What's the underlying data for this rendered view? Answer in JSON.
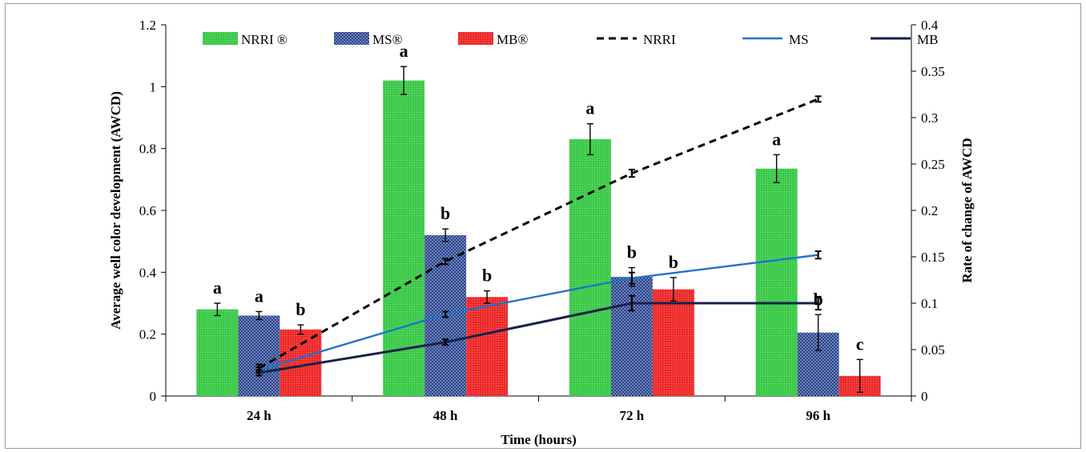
{
  "chart_data": {
    "type": "bar",
    "categories": [
      "24 h",
      "48 h",
      "72 h",
      "96 h"
    ],
    "xlabel": "Time (hours)",
    "ylabel": "Average well color development (AWCD)",
    "y2label": "Rate of change of AWCD",
    "ylim": [
      0,
      1.2
    ],
    "y2lim": [
      0,
      0.4
    ],
    "yticks": [
      "0",
      "0.2",
      "0.4",
      "0.6",
      "0.8",
      "1",
      "1.2"
    ],
    "y2ticks": [
      "0",
      "0.05",
      "0.1",
      "0.15",
      "0.2",
      "0.25",
      "0.3",
      "0.35",
      "0.4"
    ],
    "legend_position": "top",
    "series": [
      {
        "name": "NRRI ®",
        "kind": "bar",
        "axis": "left",
        "color": "#3cc94a",
        "values": [
          0.28,
          1.02,
          0.83,
          0.735
        ],
        "errors": [
          0.02,
          0.045,
          0.05,
          0.045
        ],
        "letters": [
          "a",
          "a",
          "a",
          "a"
        ]
      },
      {
        "name": "MS®",
        "kind": "bar",
        "axis": "left",
        "color": "#2f4a8f",
        "values": [
          0.26,
          0.52,
          0.385,
          0.205
        ],
        "errors": [
          0.013,
          0.02,
          0.03,
          0.058
        ],
        "letters": [
          "a",
          "b",
          "b",
          "b"
        ]
      },
      {
        "name": "MB®",
        "kind": "bar",
        "axis": "left",
        "color": "#ee2a2a",
        "values": [
          0.215,
          0.32,
          0.345,
          0.065
        ],
        "errors": [
          0.015,
          0.02,
          0.038,
          0.053
        ],
        "letters": [
          "b",
          "b",
          "b",
          "c"
        ]
      },
      {
        "name": "NRRI",
        "kind": "line",
        "axis": "right",
        "color": "#000000",
        "dash": "dashed",
        "values": [
          0.03,
          0.145,
          0.24,
          0.32
        ],
        "errors": [
          0.004,
          0.003,
          0.004,
          0.003
        ]
      },
      {
        "name": "MS",
        "kind": "line",
        "axis": "right",
        "color": "#1f74c8",
        "dash": "solid",
        "values": [
          0.028,
          0.088,
          0.127,
          0.152
        ],
        "errors": [
          0.003,
          0.003,
          0.006,
          0.004
        ]
      },
      {
        "name": "MB",
        "kind": "line",
        "axis": "right",
        "color": "#14214d",
        "dash": "solid",
        "values": [
          0.025,
          0.058,
          0.1,
          0.1
        ],
        "errors": [
          0.003,
          0.003,
          0.008,
          0.007
        ]
      }
    ]
  }
}
